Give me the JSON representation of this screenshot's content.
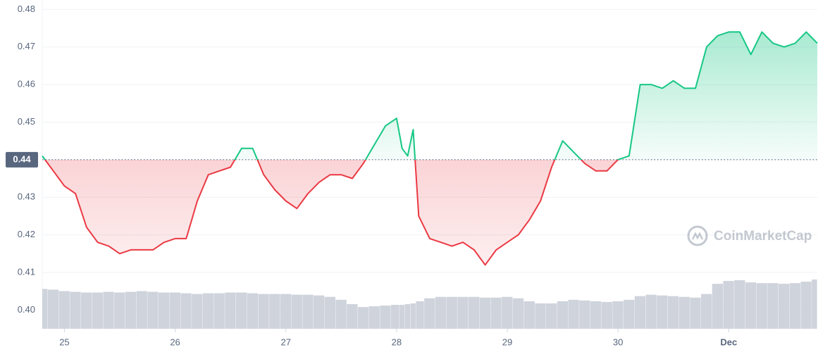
{
  "chart_data": {
    "type": "line",
    "watermark": "CoinMarketCap",
    "baseline": {
      "value": 0.44,
      "label": "0.44"
    },
    "x": [
      24.8,
      24.9,
      25.0,
      25.1,
      25.2,
      25.3,
      25.4,
      25.5,
      25.6,
      25.7,
      25.8,
      25.9,
      26.0,
      26.1,
      26.2,
      26.3,
      26.4,
      26.5,
      26.6,
      26.7,
      26.8,
      26.9,
      27.0,
      27.1,
      27.2,
      27.3,
      27.4,
      27.5,
      27.6,
      27.7,
      27.8,
      27.9,
      28.0,
      28.05,
      28.1,
      28.15,
      28.2,
      28.3,
      28.4,
      28.5,
      28.6,
      28.7,
      28.8,
      28.9,
      29.0,
      29.1,
      29.2,
      29.3,
      29.4,
      29.5,
      29.6,
      29.7,
      29.8,
      29.9,
      30.0,
      30.1,
      30.2,
      30.3,
      30.4,
      30.5,
      30.6,
      30.7,
      30.8,
      30.9,
      31.0,
      31.1,
      31.2,
      31.3,
      31.4,
      31.5,
      31.6,
      31.7,
      31.8
    ],
    "series": [
      {
        "name": "Price",
        "up_color": "#16c784",
        "down_color": "#ea3943",
        "values": [
          0.441,
          0.437,
          0.433,
          0.431,
          0.422,
          0.418,
          0.417,
          0.415,
          0.416,
          0.416,
          0.416,
          0.418,
          0.419,
          0.419,
          0.429,
          0.436,
          0.437,
          0.438,
          0.443,
          0.443,
          0.436,
          0.432,
          0.429,
          0.427,
          0.431,
          0.434,
          0.436,
          0.436,
          0.435,
          0.439,
          0.444,
          0.449,
          0.451,
          0.443,
          0.441,
          0.448,
          0.425,
          0.419,
          0.418,
          0.417,
          0.418,
          0.416,
          0.412,
          0.416,
          0.418,
          0.42,
          0.424,
          0.429,
          0.438,
          0.445,
          0.442,
          0.439,
          0.437,
          0.437,
          0.44,
          0.441,
          0.46,
          0.46,
          0.459,
          0.461,
          0.459,
          0.459,
          0.47,
          0.473,
          0.474,
          0.474,
          0.468,
          0.474,
          0.471,
          0.47,
          0.471,
          0.474,
          0.471
        ]
      },
      {
        "name": "Volume",
        "color": "#cfd3dc",
        "values": [
          55,
          54,
          52,
          51,
          50,
          50,
          51,
          50,
          51,
          52,
          51,
          50,
          50,
          49,
          48,
          49,
          49,
          50,
          50,
          49,
          48,
          48,
          48,
          47,
          47,
          46,
          44,
          40,
          34,
          30,
          31,
          32,
          33,
          33,
          34,
          35,
          38,
          42,
          44,
          44,
          44,
          44,
          43,
          43,
          44,
          42,
          38,
          35,
          35,
          38,
          40,
          39,
          38,
          37,
          38,
          40,
          45,
          47,
          46,
          45,
          44,
          43,
          48,
          62,
          66,
          67,
          64,
          63,
          63,
          62,
          63,
          65,
          68
        ]
      }
    ],
    "xlim": [
      24.8,
      31.8
    ],
    "xticks": [
      {
        "value": 25,
        "label": "25"
      },
      {
        "value": 26,
        "label": "26"
      },
      {
        "value": 27,
        "label": "27"
      },
      {
        "value": 28,
        "label": "28"
      },
      {
        "value": 29,
        "label": "29"
      },
      {
        "value": 30,
        "label": "30"
      },
      {
        "value": 31,
        "label": "Dec"
      }
    ],
    "ylim": [
      0.395,
      0.4825
    ],
    "yticks": [
      {
        "value": 0.4,
        "label": "0.40"
      },
      0.41,
      0.42,
      0.43,
      {
        "value": 0.44,
        "label": "0.44"
      },
      0.45,
      0.46,
      0.47,
      0.48
    ],
    "grid": true
  }
}
